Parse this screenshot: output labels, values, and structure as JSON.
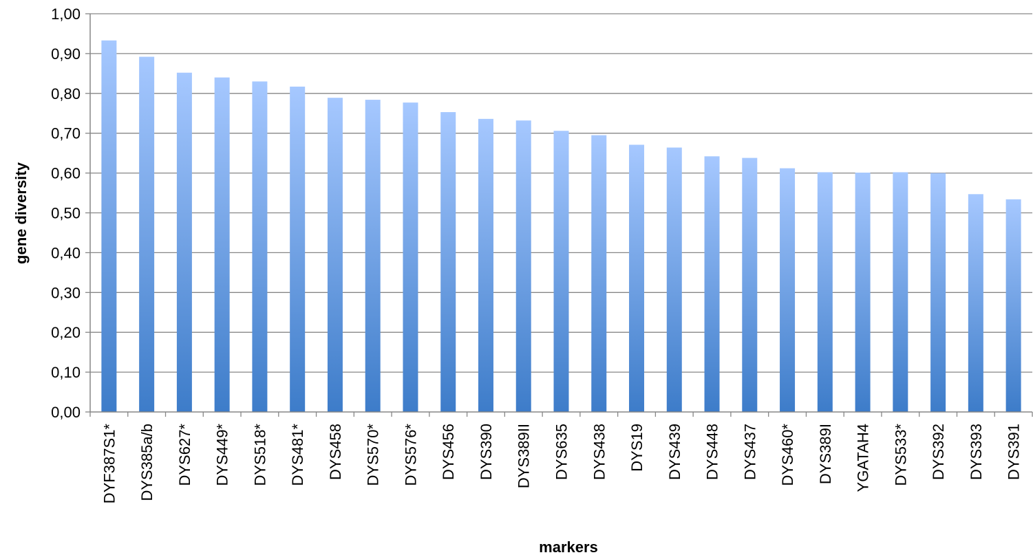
{
  "chart_data": {
    "type": "bar",
    "title": "",
    "xlabel": "markers",
    "ylabel": "gene diversity",
    "ylim": [
      0,
      1
    ],
    "y_ticks": [
      "0,00",
      "0,10",
      "0,20",
      "0,30",
      "0,40",
      "0,50",
      "0,60",
      "0,70",
      "0,80",
      "0,90",
      "1,00"
    ],
    "grid": true,
    "legend": "none",
    "categories": [
      "DYF387S1*",
      "DYS385a/b",
      "DYS627*",
      "DYS449*",
      "DYS518*",
      "DYS481*",
      "DYS458",
      "DYS570*",
      "DYS576*",
      "DYS456",
      "DYS390",
      "DYS389II",
      "DYS635",
      "DYS438",
      "DYS19",
      "DYS439",
      "DYS448",
      "DYS437",
      "DYS460*",
      "DYS389I",
      "YGATAH4",
      "DYS533*",
      "DYS392",
      "DYS393",
      "DYS391"
    ],
    "values": [
      0.933,
      0.892,
      0.852,
      0.84,
      0.83,
      0.817,
      0.789,
      0.784,
      0.777,
      0.753,
      0.736,
      0.732,
      0.706,
      0.695,
      0.671,
      0.664,
      0.642,
      0.638,
      0.612,
      0.602,
      0.601,
      0.602,
      0.6,
      0.547,
      0.534
    ],
    "colors": {
      "bar_top": "#a6c8ff",
      "bar_bottom": "#3d7cc9",
      "grid": "#868686",
      "axis": "#868686"
    }
  }
}
